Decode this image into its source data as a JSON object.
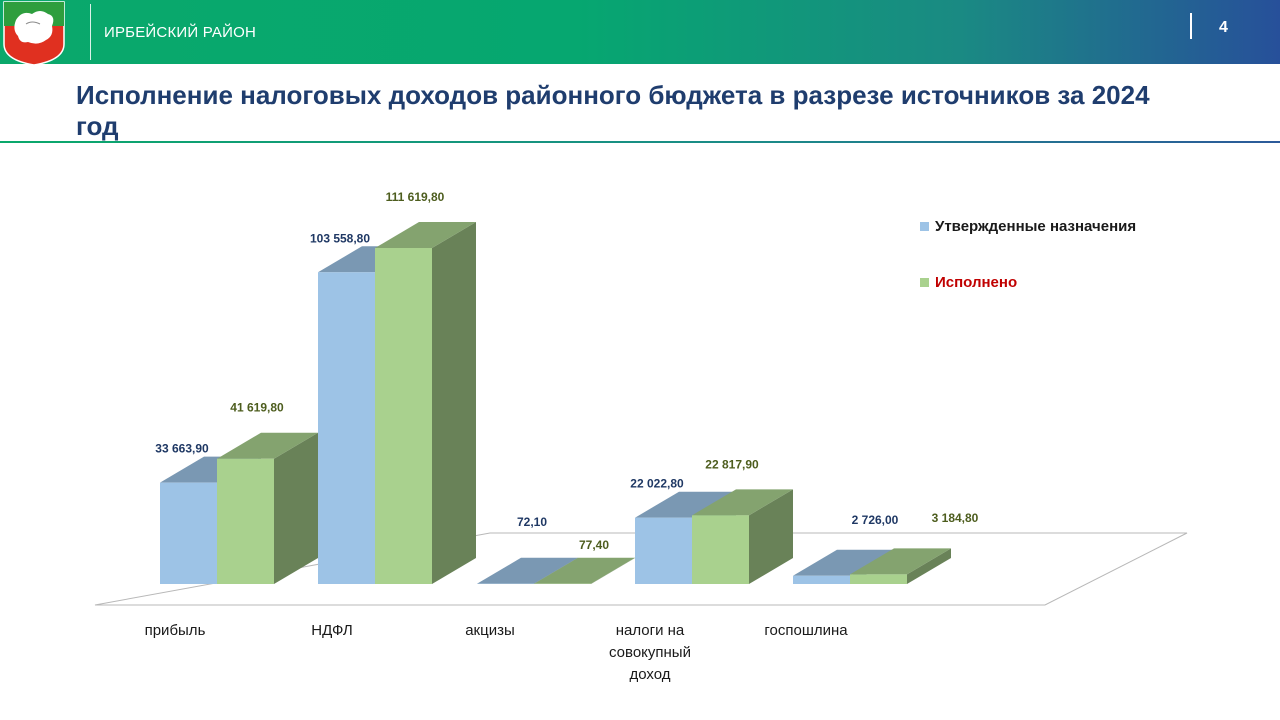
{
  "header": {
    "region_name": "ИРБЕЙСКИЙ РАЙОН",
    "page_number": "4",
    "colors": {
      "green": "#06a770",
      "blue": "#27509a"
    }
  },
  "title": "Исполнение налоговых доходов районного бюджета в разрезе источников за 2024 год",
  "chart_data": {
    "type": "bar",
    "style": "3d-clustered-column",
    "categories": [
      "прибыль",
      "НДФЛ",
      "акцизы",
      "налоги на совокупный доход",
      "госпошлина"
    ],
    "series": [
      {
        "name": "Утвержденные назначения",
        "color": "#9dc3e6",
        "values": [
          33663.9,
          103558.8,
          72.1,
          22022.8,
          2726.0
        ],
        "labels": [
          "33 663,90",
          "103 558,80",
          "72,10",
          "22 022,80",
          "2 726,00"
        ],
        "label_color": "#1f3864"
      },
      {
        "name": "Исполнено",
        "color": "#a9d18e",
        "values": [
          41619.8,
          111619.8,
          77.4,
          22817.9,
          3184.8
        ],
        "labels": [
          "41 619,80",
          "111 619,80",
          "77,40",
          "22 817,90",
          "3 184,80"
        ],
        "label_color": "#4d5d1e"
      }
    ],
    "legend": {
      "position": "top-right",
      "text_colors": [
        "#1a1a1a",
        "#c00000"
      ]
    },
    "ylim": [
      0,
      111619.8
    ],
    "grid": false
  }
}
